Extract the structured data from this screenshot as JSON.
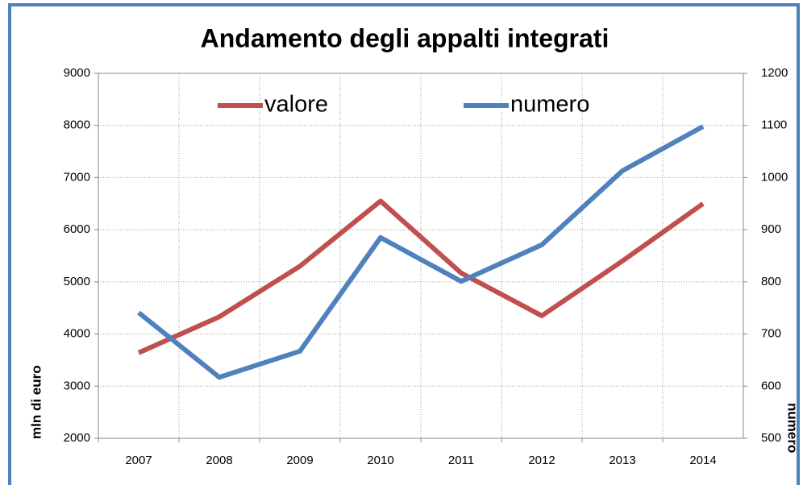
{
  "chart_data": {
    "type": "line",
    "title": "Andamento degli appalti integrati",
    "y_label": "mln di euro",
    "y2_label": "numero",
    "categories": [
      "2007",
      "2008",
      "2009",
      "2010",
      "2011",
      "2012",
      "2013",
      "2014"
    ],
    "series": [
      {
        "name": "valore",
        "color": "#c0504d",
        "values": [
          3640,
          4330,
          5300,
          6550,
          5170,
          4350,
          5400,
          6500
        ]
      },
      {
        "name": "numero",
        "color": "#4f81bd",
        "axis": "y2",
        "values": [
          741,
          617,
          667,
          885,
          801,
          871,
          1013,
          1098
        ]
      }
    ],
    "ylim": [
      2000,
      9000
    ],
    "yticks": [
      2000,
      3000,
      4000,
      5000,
      6000,
      7000,
      8000,
      9000
    ],
    "y2lim": [
      500,
      1200
    ],
    "y2ticks": [
      500,
      600,
      700,
      800,
      900,
      1000,
      1100,
      1200
    ],
    "grid": true,
    "legend": "top"
  }
}
